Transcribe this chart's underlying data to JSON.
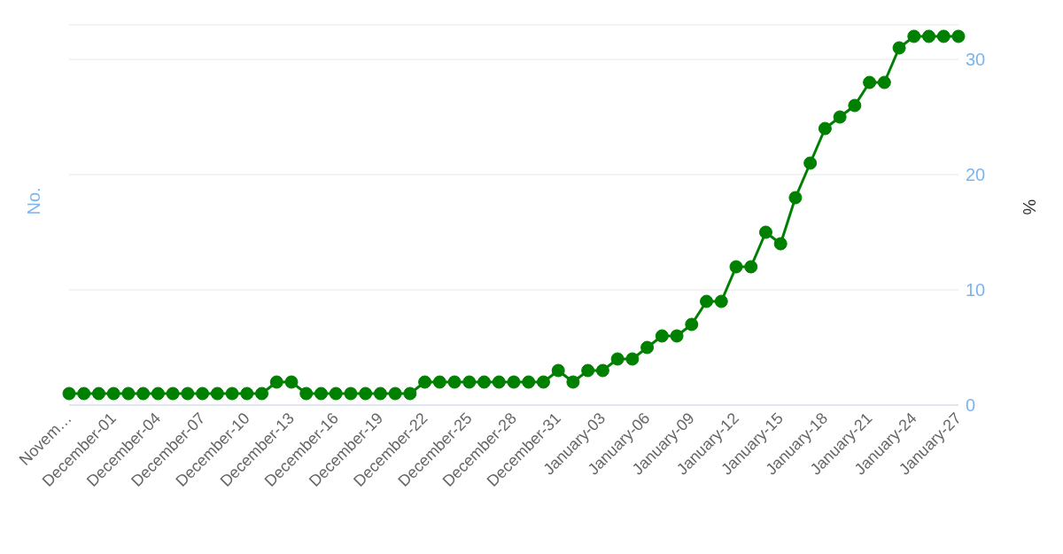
{
  "chart_data": {
    "type": "line",
    "ylabel": "No.",
    "y2label": "%",
    "categories": [
      "Novem…",
      null,
      null,
      "December-01",
      null,
      null,
      "December-04",
      null,
      null,
      "December-07",
      null,
      null,
      "December-10",
      null,
      null,
      "December-13",
      null,
      null,
      "December-16",
      null,
      null,
      "December-19",
      null,
      null,
      "December-22",
      null,
      null,
      "December-25",
      null,
      null,
      "December-28",
      null,
      null,
      "December-31",
      null,
      null,
      "January-03",
      null,
      null,
      "January-06",
      null,
      null,
      "January-09",
      null,
      null,
      "January-12",
      null,
      null,
      "January-15",
      null,
      null,
      "January-18",
      null,
      null,
      "January-21",
      null,
      null,
      "January-24",
      null,
      null,
      "January-27"
    ],
    "series": [
      {
        "color": "#008000",
        "axis": "y2",
        "values": [
          1,
          1,
          1,
          1,
          1,
          1,
          1,
          1,
          1,
          1,
          1,
          1,
          1,
          1,
          2,
          2,
          1,
          1,
          1,
          1,
          1,
          1,
          1,
          1,
          2,
          2,
          2,
          2,
          2,
          2,
          2,
          2,
          2,
          3,
          2,
          3,
          3,
          4,
          4,
          5,
          6,
          6,
          7,
          9,
          9,
          12,
          12,
          15,
          14,
          18,
          21,
          24,
          25,
          26,
          28,
          28,
          31,
          32,
          32,
          32,
          32
        ]
      }
    ],
    "y2lim": [
      0,
      33
    ],
    "y2ticks": [
      0,
      10,
      20,
      30
    ],
    "grid": "y",
    "legend": false,
    "marker": "circle",
    "line_style": "solid"
  }
}
